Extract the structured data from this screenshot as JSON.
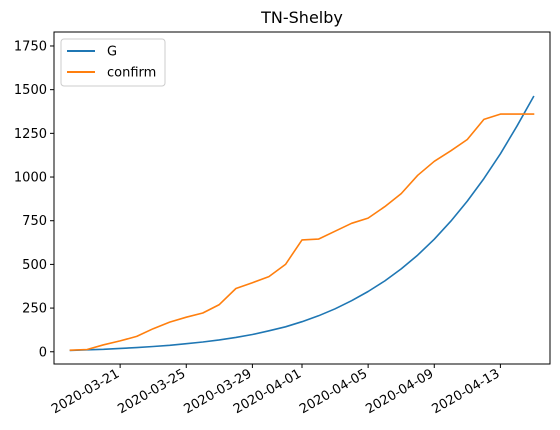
{
  "chart_data": {
    "type": "line",
    "title": "TN-Shelby",
    "xlabel": "",
    "ylabel": "",
    "x_start": "2020-03-18",
    "xlim": [
      "2020-03-17",
      "2020-04-16"
    ],
    "ylim": [
      -70,
      1830
    ],
    "x_ticks": [
      "2020-03-21",
      "2020-03-25",
      "2020-03-29",
      "2020-04-01",
      "2020-04-05",
      "2020-04-09",
      "2020-04-13"
    ],
    "y_ticks": [
      0,
      250,
      500,
      750,
      1000,
      1250,
      1500,
      1750
    ],
    "y_tick_labels": [
      "0",
      "250",
      "500",
      "750",
      "1000",
      "1250",
      "1500",
      "1750"
    ],
    "grid": false,
    "legend_position": "top-left",
    "series": [
      {
        "name": "G",
        "color": "#1f77b4",
        "x": [
          "2020-03-18",
          "2020-03-19",
          "2020-03-20",
          "2020-03-21",
          "2020-03-22",
          "2020-03-23",
          "2020-03-24",
          "2020-03-25",
          "2020-03-26",
          "2020-03-27",
          "2020-03-28",
          "2020-03-29",
          "2020-03-30",
          "2020-03-31",
          "2020-04-01",
          "2020-04-02",
          "2020-04-03",
          "2020-04-04",
          "2020-04-05",
          "2020-04-06",
          "2020-04-07",
          "2020-04-08",
          "2020-04-09",
          "2020-04-10",
          "2020-04-11",
          "2020-04-12",
          "2020-04-13",
          "2020-04-14",
          "2020-04-15"
        ],
        "values": [
          8,
          11,
          14,
          19,
          24,
          30,
          37,
          46,
          56,
          68,
          82,
          99,
          120,
          143,
          172,
          206,
          246,
          292,
          345,
          405,
          474,
          553,
          644,
          747,
          862,
          991,
          1133,
          1291,
          1460
        ]
      },
      {
        "name": "confirm",
        "color": "#ff7f0e",
        "x": [
          "2020-03-18",
          "2020-03-19",
          "2020-03-20",
          "2020-03-21",
          "2020-03-22",
          "2020-03-23",
          "2020-03-24",
          "2020-03-25",
          "2020-03-26",
          "2020-03-27",
          "2020-03-28",
          "2020-03-29",
          "2020-03-30",
          "2020-03-31",
          "2020-04-01",
          "2020-04-02",
          "2020-04-03",
          "2020-04-04",
          "2020-04-05",
          "2020-04-06",
          "2020-04-07",
          "2020-04-08",
          "2020-04-09",
          "2020-04-10",
          "2020-04-11",
          "2020-04-12",
          "2020-04-13",
          "2020-04-14",
          "2020-04-15"
        ],
        "values": [
          9,
          13,
          40,
          62,
          88,
          132,
          170,
          198,
          222,
          270,
          362,
          395,
          430,
          500,
          640,
          645,
          690,
          735,
          765,
          830,
          905,
          1010,
          1090,
          1150,
          1215,
          1330,
          1360,
          1360,
          1360
        ]
      }
    ]
  }
}
